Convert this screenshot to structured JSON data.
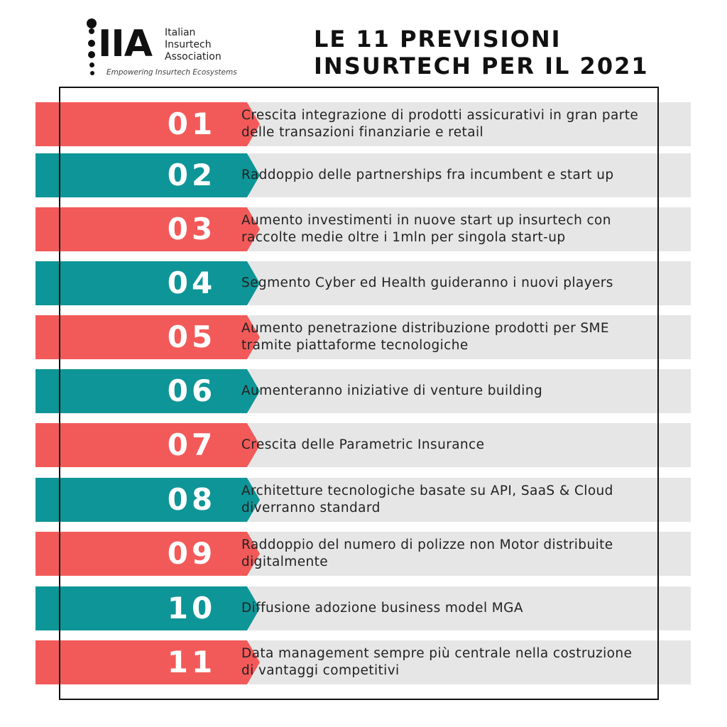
{
  "logo": {
    "letters": "IIA",
    "name_lines": [
      "Italian",
      "Insurtech",
      "Association"
    ],
    "tagline": "Empowering Insurtech Ecosystems"
  },
  "title": {
    "line1": "LE 11 PREVISIONI",
    "line2": "INSURTECH PER IL 2021"
  },
  "colors": {
    "red": "#f25a59",
    "teal": "#0e9597",
    "row_bg": "#e6e6e6",
    "frame": "#111111"
  },
  "predictions": [
    {
      "num": "01",
      "color": "red",
      "text": "Crescita integrazione di prodotti assicurativi in gran parte delle transazioni finanziarie e retail"
    },
    {
      "num": "02",
      "color": "teal",
      "text": "Raddoppio delle partnerships fra incumbent e start up"
    },
    {
      "num": "03",
      "color": "red",
      "text": "Aumento investimenti in nuove start up insurtech con raccolte medie oltre i 1mln per singola start-up"
    },
    {
      "num": "04",
      "color": "teal",
      "text": "Segmento Cyber ed Health guideranno i nuovi players"
    },
    {
      "num": "05",
      "color": "red",
      "text": "Aumento penetrazione distribuzione prodotti per SME tramite piattaforme tecnologiche"
    },
    {
      "num": "06",
      "color": "teal",
      "text": "Aumenteranno iniziative di venture building"
    },
    {
      "num": "07",
      "color": "red",
      "text": "Crescita delle Parametric Insurance"
    },
    {
      "num": "08",
      "color": "teal",
      "text": "Architetture tecnologiche basate su API, SaaS & Cloud diverranno standard"
    },
    {
      "num": "09",
      "color": "red",
      "text": "Raddoppio del numero di polizze non Motor distribuite digitalmente"
    },
    {
      "num": "10",
      "color": "teal",
      "text": "Diffusione adozione business model MGA"
    },
    {
      "num": "11",
      "color": "red",
      "text": "Data management sempre più centrale nella costruzione di vantaggi competitivi"
    }
  ]
}
